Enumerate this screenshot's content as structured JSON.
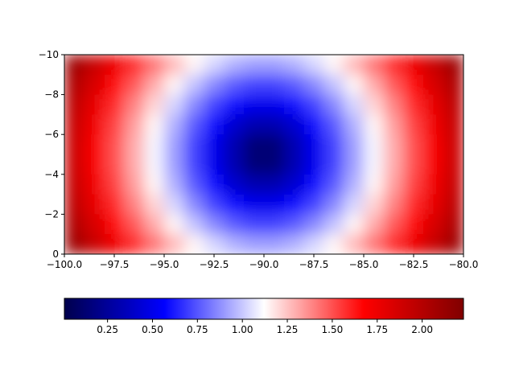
{
  "chart_data": {
    "type": "heatmap",
    "colormap": "seismic",
    "xlim": [
      -100,
      -80
    ],
    "xticks": [
      {
        "value": -100,
        "label": "−100.0"
      },
      {
        "value": -97.5,
        "label": "−97.5"
      },
      {
        "value": -95,
        "label": "−95.0"
      },
      {
        "value": -92.5,
        "label": "−92.5"
      },
      {
        "value": -90,
        "label": "−90.0"
      },
      {
        "value": -87.5,
        "label": "−87.5"
      },
      {
        "value": -85,
        "label": "−85.0"
      },
      {
        "value": -82.5,
        "label": "−82.5"
      },
      {
        "value": -80,
        "label": "−80.0"
      }
    ],
    "ylim": [
      0,
      -10
    ],
    "yticks": [
      {
        "value": -10,
        "label": "−10"
      },
      {
        "value": -8,
        "label": "−8"
      },
      {
        "value": -6,
        "label": "−6"
      },
      {
        "value": -4,
        "label": "−4"
      },
      {
        "value": -2,
        "label": "−2"
      },
      0
    ],
    "clim": [
      0.01,
      2.23
    ],
    "cticks": [
      0.25,
      {
        "value": 0.5,
        "label": "0.50"
      },
      0.75,
      {
        "value": 1,
        "label": "1.00"
      },
      1.25,
      {
        "value": 1.5,
        "label": "1.50"
      },
      1.75,
      {
        "value": 2,
        "label": "2.00"
      }
    ],
    "z": [
      [
        2.1,
        1.92,
        1.75,
        1.58,
        1.42,
        1.27,
        1.14,
        1.03,
        0.95,
        0.91,
        0.91,
        0.95,
        1.03,
        1.14,
        1.27,
        1.42,
        1.58,
        1.75,
        1.92,
        2.1
      ],
      [
        2.02,
        1.84,
        1.66,
        1.48,
        1.3,
        1.14,
        0.99,
        0.86,
        0.76,
        0.71,
        0.71,
        0.76,
        0.86,
        0.99,
        1.14,
        1.3,
        1.48,
        1.66,
        1.84,
        2.02
      ],
      [
        1.96,
        1.77,
        1.58,
        1.39,
        1.21,
        1.03,
        0.86,
        0.71,
        0.58,
        0.51,
        0.51,
        0.58,
        0.71,
        0.86,
        1.03,
        1.21,
        1.39,
        1.58,
        1.77,
        1.96
      ],
      [
        1.92,
        1.73,
        1.53,
        1.33,
        1.14,
        0.95,
        0.76,
        0.58,
        0.42,
        0.32,
        0.32,
        0.42,
        0.58,
        0.76,
        0.95,
        1.14,
        1.33,
        1.53,
        1.73,
        1.92
      ],
      [
        1.9,
        1.7,
        1.5,
        1.3,
        1.1,
        0.91,
        0.71,
        0.51,
        0.32,
        0.14,
        0.14,
        0.32,
        0.51,
        0.71,
        0.91,
        1.1,
        1.3,
        1.5,
        1.7,
        1.9
      ],
      [
        1.9,
        1.7,
        1.5,
        1.3,
        1.1,
        0.91,
        0.71,
        0.51,
        0.32,
        0.14,
        0.14,
        0.32,
        0.51,
        0.71,
        0.91,
        1.1,
        1.3,
        1.5,
        1.7,
        1.9
      ],
      [
        1.92,
        1.73,
        1.53,
        1.33,
        1.14,
        0.95,
        0.76,
        0.58,
        0.42,
        0.32,
        0.32,
        0.42,
        0.58,
        0.76,
        0.95,
        1.14,
        1.33,
        1.53,
        1.73,
        1.92
      ],
      [
        1.96,
        1.77,
        1.58,
        1.39,
        1.21,
        1.03,
        0.86,
        0.71,
        0.58,
        0.51,
        0.51,
        0.58,
        0.71,
        0.86,
        1.03,
        1.21,
        1.39,
        1.58,
        1.77,
        1.96
      ],
      [
        2.02,
        1.84,
        1.66,
        1.48,
        1.3,
        1.14,
        0.99,
        0.86,
        0.76,
        0.71,
        0.71,
        0.76,
        0.86,
        0.99,
        1.14,
        1.3,
        1.48,
        1.66,
        1.84,
        2.02
      ],
      [
        2.1,
        1.92,
        1.75,
        1.58,
        1.42,
        1.27,
        1.14,
        1.03,
        0.95,
        0.91,
        0.91,
        0.95,
        1.03,
        1.14,
        1.27,
        1.42,
        1.58,
        1.75,
        1.92,
        2.1
      ]
    ]
  }
}
